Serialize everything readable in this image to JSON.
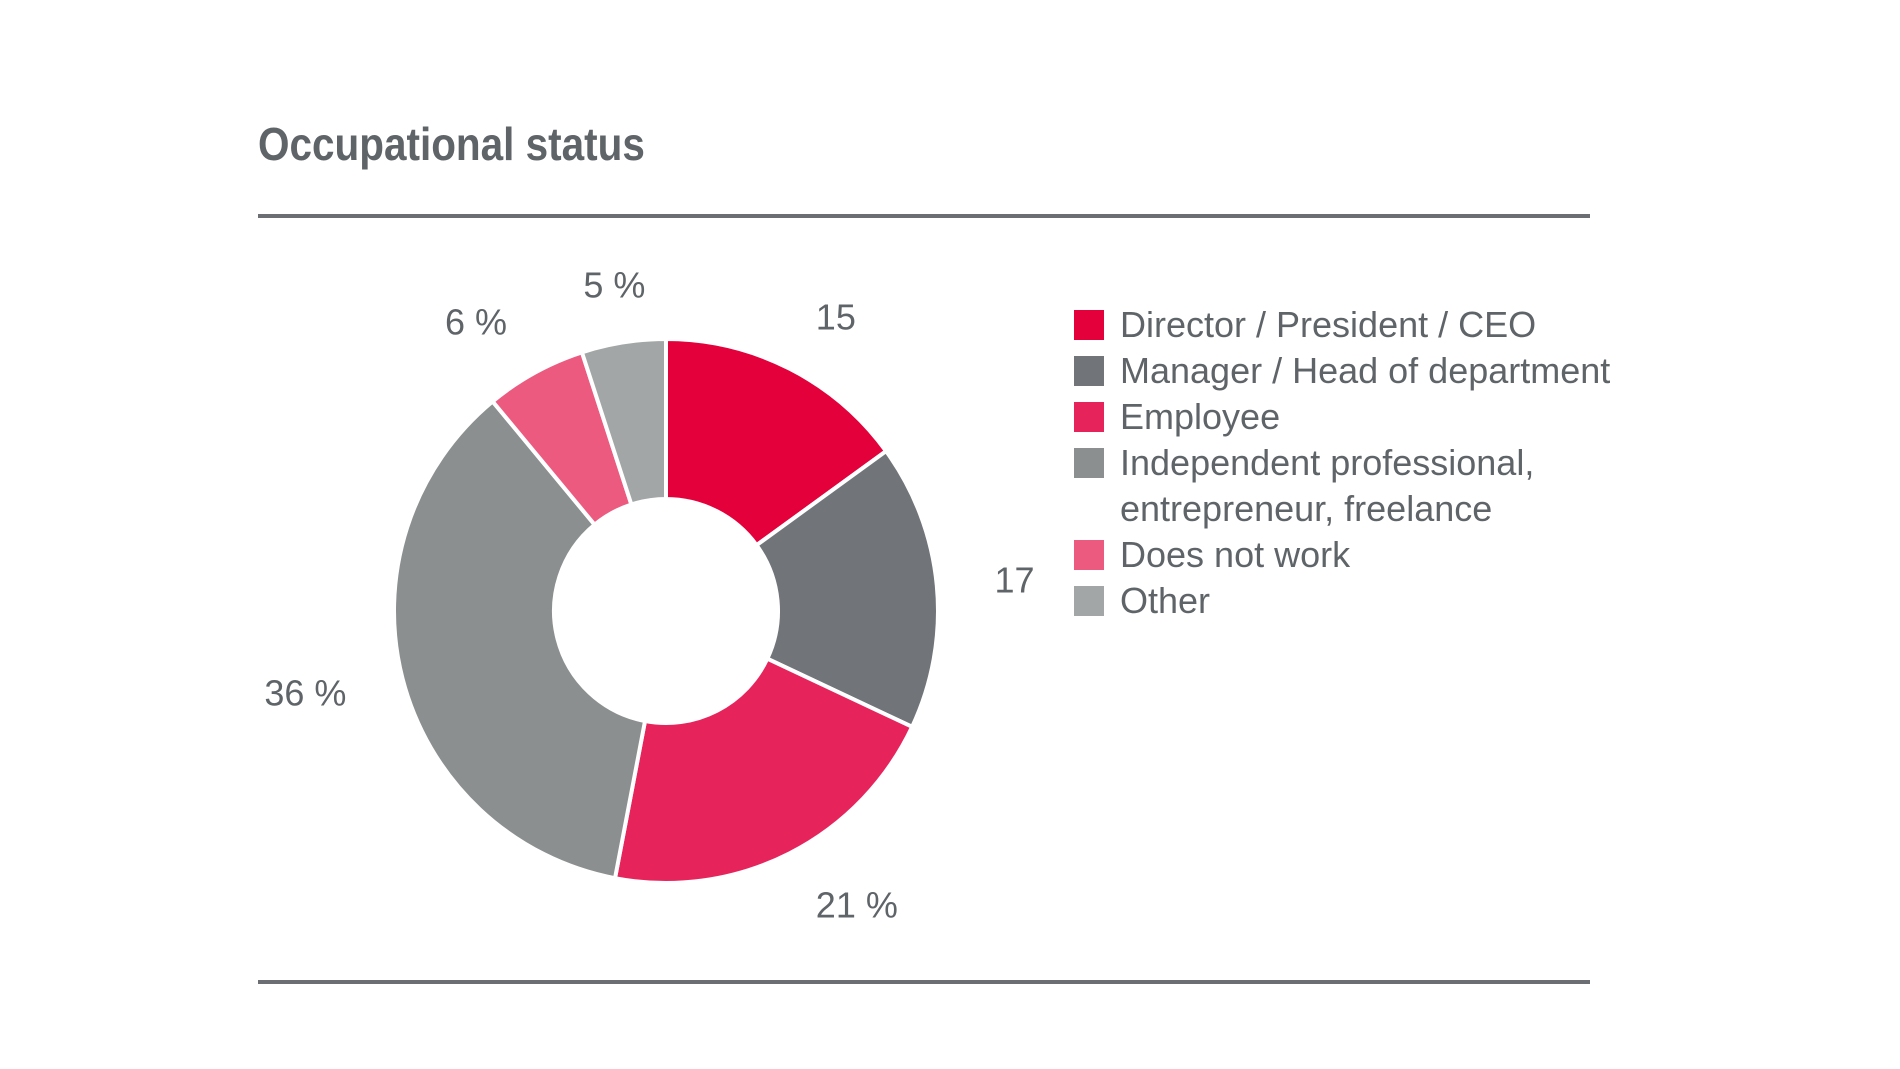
{
  "chart_data": {
    "type": "pie",
    "title": "Occupational status",
    "categories": [
      "Director / President / CEO",
      "Manager / Head of department",
      "Employee",
      "Independent professional, entrepreneur, freelance",
      "Does not work",
      "Other"
    ],
    "legend_lines": [
      [
        "Director / President / CEO"
      ],
      [
        "Manager / Head of department"
      ],
      [
        "Employee"
      ],
      [
        "Independent professional,",
        "entrepreneur, freelance"
      ],
      [
        "Does not work"
      ],
      [
        "Other"
      ]
    ],
    "values": [
      15,
      17,
      21,
      36,
      6,
      5
    ],
    "data_labels": [
      "15",
      "17",
      "21 %",
      "36 %",
      "6 %",
      "5 %"
    ],
    "colors": [
      "#e4003a",
      "#717579",
      "#e7235c",
      "#8b8f8f",
      "#ec5a80",
      "#a2a6a6"
    ],
    "donut": true,
    "legend": "right"
  }
}
